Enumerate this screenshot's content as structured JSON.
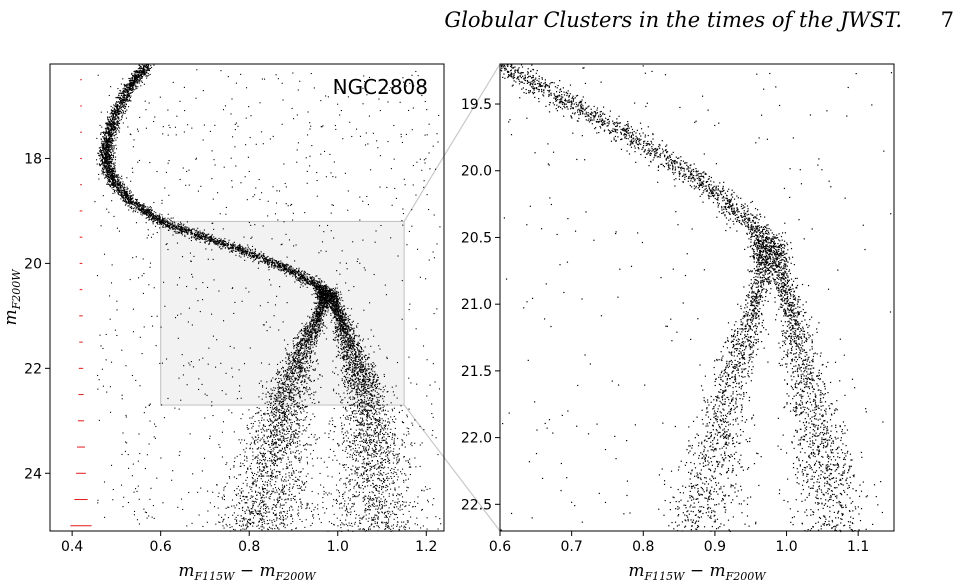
{
  "header": {
    "running_title": "Globular Clusters in the times of the JWST.",
    "page_number": "7"
  },
  "chart_data": [
    {
      "type": "scatter",
      "panel": "full-cmd",
      "annotation": "NGC2808",
      "xlabel": {
        "main": "m",
        "sub1": "F115W",
        "minus": " − m",
        "sub2": "F200W"
      },
      "ylabel": {
        "main": "m",
        "sub": "F200W"
      },
      "xlim": [
        0.35,
        1.24
      ],
      "ylim": [
        25.1,
        16.2
      ],
      "y_inverted": true,
      "xticks": [
        "0.4",
        "0.6",
        "0.8",
        "1.0",
        "1.2"
      ],
      "yticks": [
        "18",
        "20",
        "22",
        "24"
      ],
      "zoom_box": {
        "x": [
          0.6,
          1.15
        ],
        "y": [
          19.2,
          22.7
        ],
        "fill": "#f2f2f2"
      },
      "error_bars": {
        "x": 0.42,
        "color": "#e41a1c",
        "y": [
          16.5,
          17.0,
          17.5,
          18.0,
          18.5,
          19.0,
          19.5,
          20.0,
          20.5,
          21.0,
          21.5,
          22.0,
          22.5,
          23.0,
          23.5,
          24.0,
          24.5,
          25.0
        ],
        "xerr": [
          0.002,
          0.002,
          0.002,
          0.002,
          0.002,
          0.003,
          0.003,
          0.003,
          0.003,
          0.004,
          0.004,
          0.005,
          0.006,
          0.007,
          0.009,
          0.011,
          0.015,
          0.024
        ]
      },
      "sequences": [
        {
          "name": "",
          "points": [
            [
              0.57,
              16.2
            ],
            [
              0.53,
              16.6
            ],
            [
              0.5,
              17.1
            ],
            [
              0.48,
              17.6
            ],
            [
              0.475,
              18.0
            ],
            [
              0.49,
              18.4
            ],
            [
              0.53,
              18.8
            ],
            [
              0.6,
              19.2
            ],
            [
              0.7,
              19.5
            ],
            [
              0.8,
              19.8
            ],
            [
              0.9,
              20.15
            ],
            [
              0.96,
              20.45
            ],
            [
              0.97,
              20.7
            ],
            [
              0.95,
              21.1
            ],
            [
              0.92,
              21.6
            ],
            [
              0.9,
              22.1
            ],
            [
              0.88,
              22.6
            ],
            [
              0.865,
              23.2
            ],
            [
              0.85,
              23.8
            ],
            [
              0.84,
              24.5
            ],
            [
              0.83,
              25.1
            ]
          ]
        },
        {
          "name": "",
          "points": [
            [
              0.98,
              20.5
            ],
            [
              1.0,
              20.9
            ],
            [
              1.02,
              21.4
            ],
            [
              1.04,
              21.9
            ],
            [
              1.06,
              22.4
            ],
            [
              1.07,
              23.0
            ],
            [
              1.08,
              23.6
            ],
            [
              1.08,
              24.3
            ],
            [
              1.08,
              25.1
            ]
          ]
        }
      ],
      "point_color": "#000000"
    },
    {
      "type": "scatter",
      "panel": "zoom-cmd",
      "xlabel": {
        "main": "m",
        "sub1": "F115W",
        "minus": " − m",
        "sub2": "F200W"
      },
      "xlim": [
        0.6,
        1.15
      ],
      "ylim": [
        22.7,
        19.2
      ],
      "y_inverted": true,
      "xticks": [
        "0.6",
        "0.7",
        "0.8",
        "0.9",
        "1.0",
        "1.1"
      ],
      "yticks": [
        "19.5",
        "20.0",
        "20.5",
        "21.0",
        "21.5",
        "22.0",
        "22.5"
      ],
      "point_color": "#000000"
    }
  ]
}
